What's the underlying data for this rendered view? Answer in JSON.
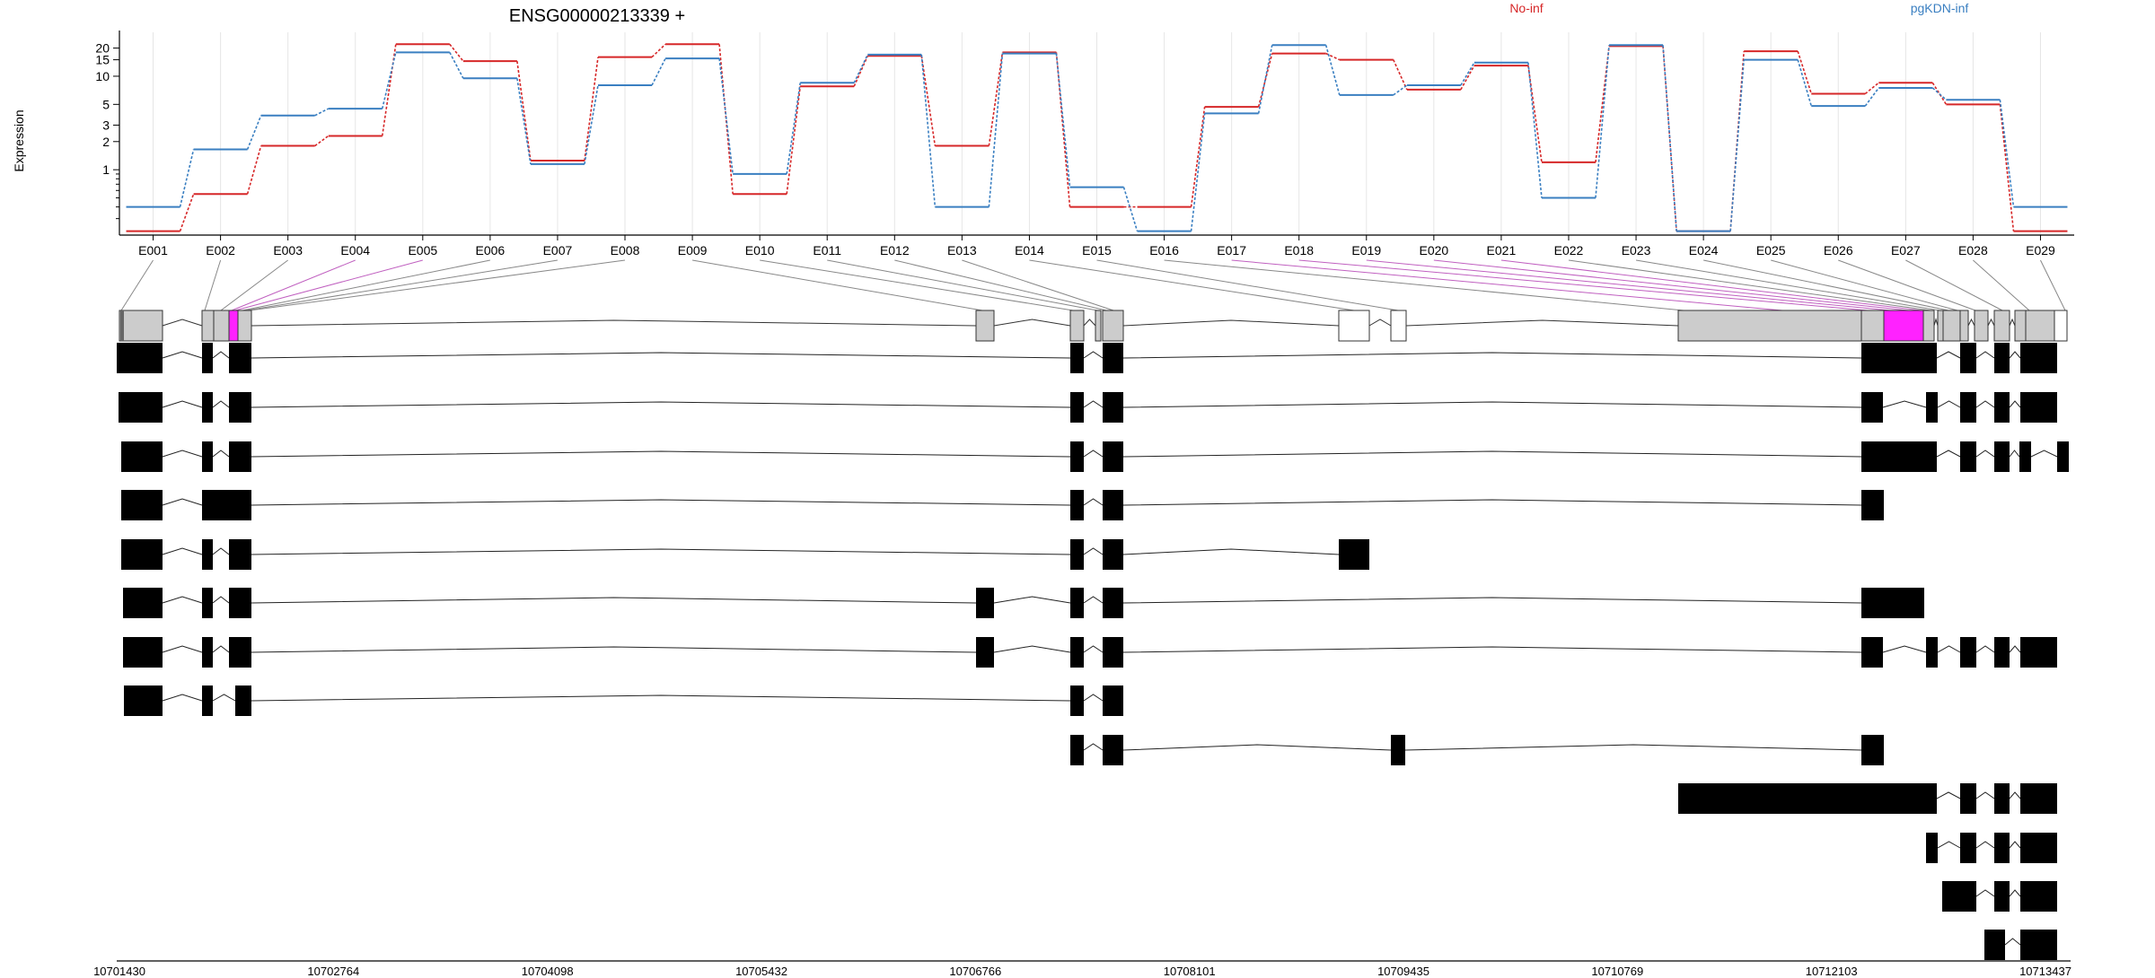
{
  "title": "ENSG00000213339 +",
  "legend": {
    "entries": [
      {
        "label": "No-inf",
        "color": "#d62728"
      },
      {
        "label": "pgKDN-inf",
        "color": "#3a7fc1"
      }
    ]
  },
  "chart_data": {
    "type": "line",
    "title": "ENSG00000213339 +",
    "ylabel": "Expression",
    "xlabel": "",
    "yscale": "log",
    "yticks": [
      1,
      2,
      3,
      5,
      10,
      15,
      20
    ],
    "ylim": [
      0.2,
      27
    ],
    "grid": "vertical lines at each exon",
    "legend_position": "top",
    "categories": [
      "E001",
      "E002",
      "E003",
      "E004",
      "E005",
      "E006",
      "E007",
      "E008",
      "E009",
      "E010",
      "E011",
      "E012",
      "E013",
      "E014",
      "E015",
      "E016",
      "E017",
      "E018",
      "E019",
      "E020",
      "E021",
      "E022",
      "E023",
      "E024",
      "E025",
      "E026",
      "E027",
      "E028",
      "E029"
    ],
    "series": [
      {
        "name": "No-inf",
        "color": "#d62728",
        "values": [
          0.22,
          0.55,
          1.8,
          2.3,
          22,
          14.5,
          1.25,
          16,
          22,
          0.55,
          7.8,
          16.5,
          1.8,
          18,
          0.4,
          0.4,
          4.7,
          17.5,
          15,
          7.2,
          13,
          1.2,
          21,
          0.22,
          18.5,
          6.5,
          8.5,
          5,
          0.22
        ]
      },
      {
        "name": "pgKDN-inf",
        "color": "#3a7fc1",
        "values": [
          0.4,
          1.65,
          3.8,
          4.5,
          18,
          9.5,
          1.15,
          8,
          15.5,
          0.9,
          8.5,
          17,
          0.4,
          17.5,
          0.65,
          0.22,
          4,
          21.5,
          6.3,
          8,
          14,
          0.5,
          21.5,
          0.22,
          15,
          4.8,
          7.5,
          5.6,
          0.4
        ]
      }
    ]
  },
  "gene_model": {
    "exon_labels": [
      "E001",
      "E002",
      "E003",
      "E004",
      "E005",
      "E006",
      "E007",
      "E008",
      "E009",
      "E010",
      "E011",
      "E012",
      "E013",
      "E014",
      "E015",
      "E016",
      "E017",
      "E018",
      "E019",
      "E020",
      "E021",
      "E022",
      "E023",
      "E024",
      "E025",
      "E026",
      "E027",
      "E028",
      "E029"
    ],
    "genomic_axis": {
      "ticks": [
        "10701430",
        "10702764",
        "10704098",
        "10705432",
        "10706766",
        "10708101",
        "10709435",
        "10710769",
        "10712103",
        "10713437"
      ]
    },
    "highlight_color": "#ff22ff",
    "transcript_count": 13
  }
}
